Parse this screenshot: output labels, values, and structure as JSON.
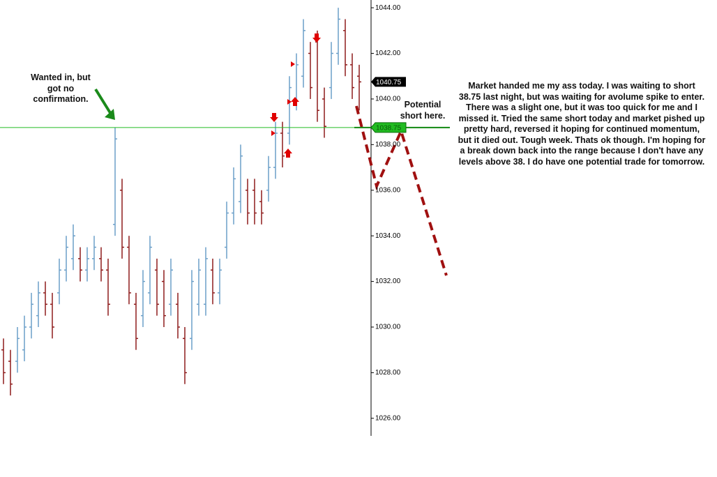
{
  "chart_data": {
    "type": "ohlc",
    "open": [
      1029,
      1028.5,
      1028.5,
      1029,
      1030,
      1030.5,
      1031.5,
      1031,
      1031.5,
      1032.5,
      1033,
      1033,
      1032.5,
      1033,
      1033,
      1032.5,
      1034.5,
      1036,
      1033.5,
      1031,
      1030.5,
      1031.5,
      1032.5,
      1032,
      1031,
      1031,
      1029.5,
      1029.5,
      1031,
      1031,
      1032.5,
      1031.5,
      1033.5,
      1035,
      1035.5,
      1036,
      1036,
      1035.5,
      1036,
      1037,
      1038.5,
      1038.5,
      1040,
      1041,
      1042,
      1042.5,
      1040,
      1040.5,
      1042,
      1043,
      1041.5,
      1041
    ],
    "high": [
      1029.5,
      1029,
      1030,
      1030.5,
      1031.5,
      1032,
      1032,
      1031.5,
      1033,
      1034,
      1034.5,
      1033.5,
      1033.5,
      1034,
      1033.5,
      1033,
      1038.75,
      1036.5,
      1034,
      1031.5,
      1032.5,
      1034,
      1033,
      1032.5,
      1033,
      1031.5,
      1030,
      1032.5,
      1033,
      1033.5,
      1033,
      1033,
      1035.5,
      1037,
      1038,
      1036.5,
      1036.5,
      1036,
      1037.5,
      1039,
      1039,
      1041,
      1042,
      1043.5,
      1042.5,
      1043,
      1040.5,
      1042.5,
      1044,
      1043.5,
      1042,
      1041.5
    ],
    "low": [
      1027.5,
      1027,
      1028,
      1028.5,
      1029.5,
      1030,
      1030.5,
      1029.5,
      1031,
      1032,
      1032.5,
      1032,
      1032,
      1032.5,
      1032,
      1030.5,
      1034,
      1033,
      1031,
      1029,
      1030,
      1031,
      1030.5,
      1030,
      1030.5,
      1029.5,
      1027.5,
      1029,
      1030.5,
      1030.5,
      1031,
      1031,
      1033,
      1034.5,
      1035,
      1034.5,
      1034.5,
      1034.5,
      1035.5,
      1036.5,
      1037,
      1038,
      1039.5,
      1040.5,
      1040,
      1039,
      1038.3,
      1040,
      1041.5,
      1041,
      1040,
      1039.5
    ],
    "close": [
      1028,
      1027.5,
      1029.5,
      1030,
      1031,
      1031.5,
      1031,
      1030,
      1032.5,
      1033.5,
      1034,
      1032.5,
      1033,
      1033.5,
      1032.5,
      1031,
      1038.25,
      1033.5,
      1031.5,
      1029.5,
      1032,
      1033.5,
      1031,
      1030.5,
      1032.5,
      1030,
      1028,
      1032,
      1032.5,
      1033,
      1031.5,
      1032.5,
      1035,
      1036.5,
      1037.5,
      1035,
      1035,
      1035,
      1037,
      1038.5,
      1037.5,
      1040.5,
      1041.5,
      1043,
      1040.5,
      1039.5,
      1038.8,
      1042,
      1043.5,
      1041.5,
      1040.5,
      1040.75
    ],
    "up_color": "#6b9fc8",
    "down_color": "#8e1b1b",
    "ylim": [
      1025.23,
      1044.34
    ],
    "yticks": [
      {
        "value": 1026,
        "label": "1026.00"
      },
      {
        "value": 1028,
        "label": "1028.00"
      },
      {
        "value": 1030,
        "label": "1030.00"
      },
      {
        "value": 1032,
        "label": "1032.00"
      },
      {
        "value": 1034,
        "label": "1034.00"
      },
      {
        "value": 1036,
        "label": "1036.00"
      },
      {
        "value": 1038,
        "label": "1038.00"
      },
      {
        "value": 1040,
        "label": "1040.00"
      },
      {
        "value": 1042,
        "label": "1042.00"
      },
      {
        "value": 1044,
        "label": "1044.00"
      }
    ],
    "last_price": 1040.75,
    "level_line": 1038.75,
    "level_color": "#22bb22",
    "annotations": [
      "Wanted in, but got no confirmation.",
      "Potential short here."
    ],
    "commentary": "Market handed me my ass today. I was waiting to short 38.75 last night, but was waiting for avolume spike to enter. There was a slight one, but it was too quick for me and I missed it. Tried the same short today and market pished up pretty hard, reversed it hoping for continued momentum, but it died out. Tough week. Thats ok though. I'm hoping for a break down back into the range because I don't have any levels above 38. I do have one potential trade for tomorrow."
  }
}
